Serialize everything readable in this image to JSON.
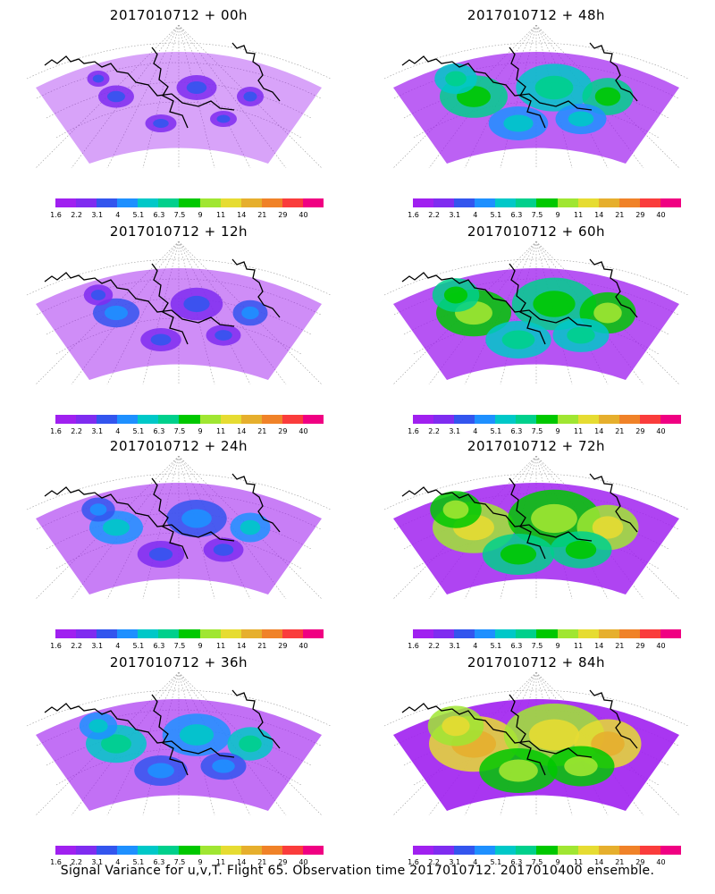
{
  "colorbar": {
    "labels": [
      "1.6",
      "2.2",
      "3.1",
      "4",
      "5.1",
      "6.3",
      "7.5",
      "9",
      "11",
      "14",
      "21",
      "29",
      "40"
    ],
    "colors": [
      "#a020f0",
      "#7f2cf0",
      "#3355ee",
      "#1e90ff",
      "#00c8c8",
      "#00d08c",
      "#00c800",
      "#a0e632",
      "#e6dc32",
      "#e6af2d",
      "#f08228",
      "#fa3c3c",
      "#f00082"
    ]
  },
  "panels": [
    {
      "title": "2017010712 + 00h",
      "level": 0.1
    },
    {
      "title": "2017010712 + 48h",
      "level": 0.55
    },
    {
      "title": "2017010712 + 12h",
      "level": 0.25
    },
    {
      "title": "2017010712 + 60h",
      "level": 0.65
    },
    {
      "title": "2017010712 + 24h",
      "level": 0.35
    },
    {
      "title": "2017010712 + 72h",
      "level": 0.75
    },
    {
      "title": "2017010712 + 36h",
      "level": 0.45
    },
    {
      "title": "2017010712 + 84h",
      "level": 0.85
    }
  ],
  "caption": "Signal Variance for u,v,T. Flight 65. Observation time 2017010712. 2017010400 ensemble."
}
